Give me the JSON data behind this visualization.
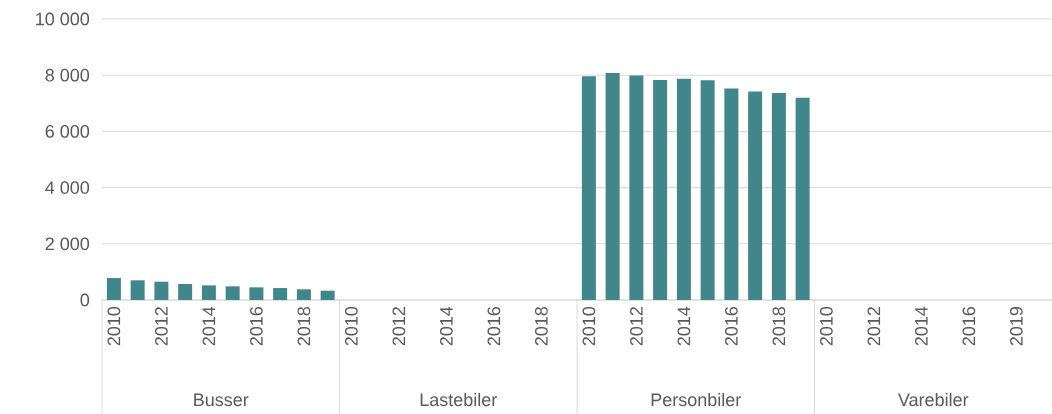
{
  "chart_data": {
    "type": "bar",
    "categories": [
      "2010",
      null,
      "2012",
      null,
      "2014",
      null,
      "2016",
      null,
      "2018",
      null,
      "2010",
      null,
      "2012",
      null,
      "2014",
      null,
      "2016",
      null,
      "2018",
      null,
      "2010",
      null,
      "2012",
      null,
      "2014",
      null,
      "2016",
      null,
      "2018",
      null,
      "2010",
      null,
      "2012",
      null,
      "2014",
      null,
      "2016",
      null,
      "2019",
      null
    ],
    "values": [
      780,
      700,
      650,
      570,
      520,
      485,
      450,
      425,
      380,
      330,
      0,
      0,
      0,
      0,
      0,
      0,
      0,
      0,
      0,
      0,
      7960,
      8080,
      7990,
      7830,
      7870,
      7820,
      7530,
      7420,
      7370,
      7200,
      0,
      0,
      0,
      0,
      0,
      0,
      0,
      0,
      0,
      0
    ],
    "color": "#40868a",
    "ylim": [
      0,
      10000
    ],
    "yticks": [
      {
        "value": 0,
        "label": "0"
      },
      {
        "value": 2000,
        "label": "2 000"
      },
      {
        "value": 4000,
        "label": "4 000"
      },
      {
        "value": 6000,
        "label": "6 000"
      },
      {
        "value": 8000,
        "label": "8 000"
      },
      {
        "value": 10000,
        "label": "10 000"
      }
    ],
    "grid": "y",
    "annotations": [
      "Busser",
      "Lastebiler",
      "Personbiler",
      "Varebiler"
    ]
  }
}
